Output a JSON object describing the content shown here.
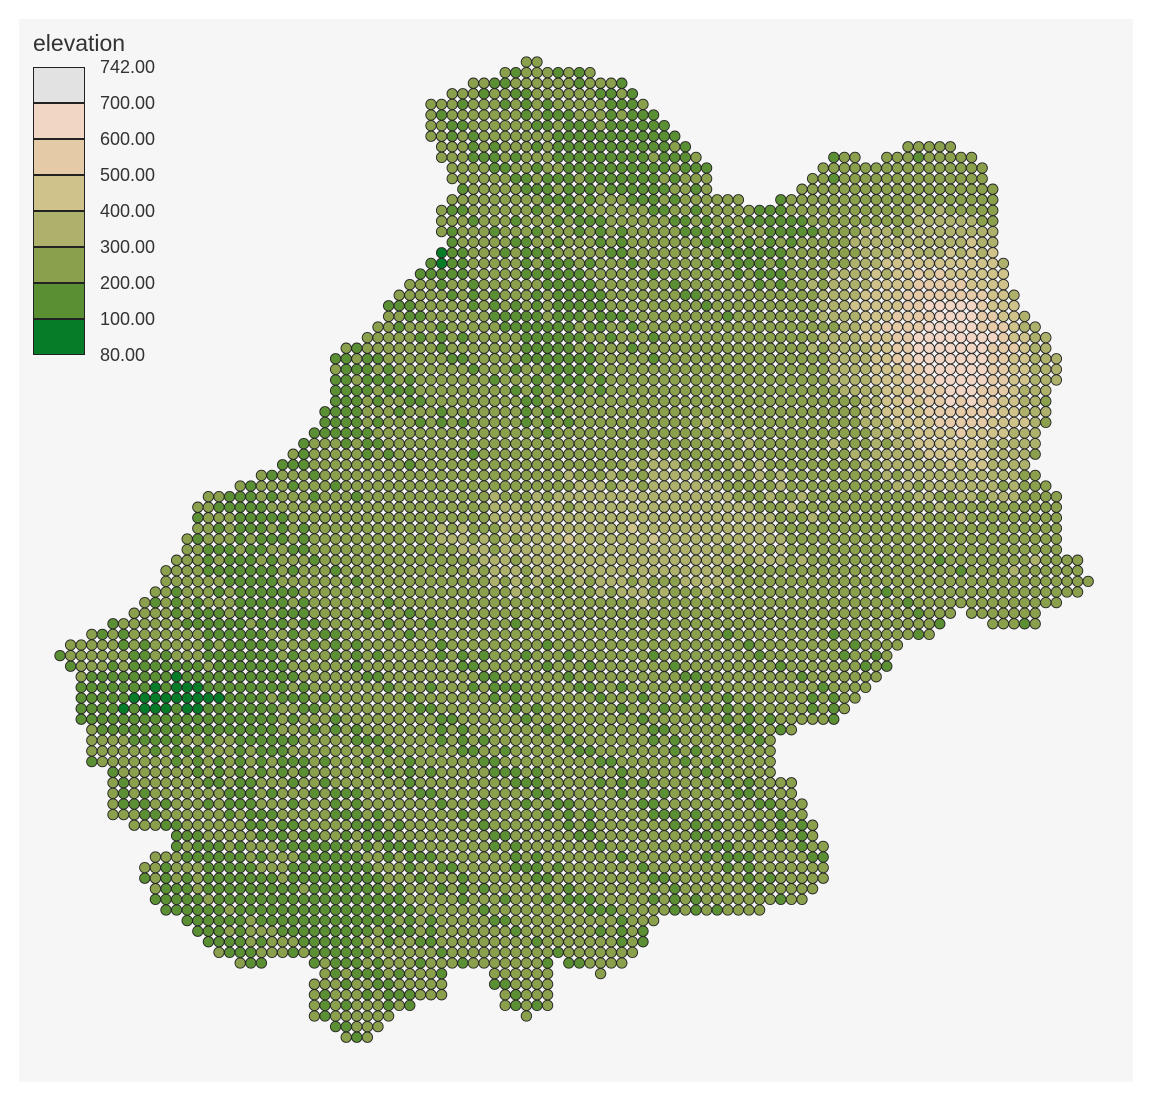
{
  "legend": {
    "title": "elevation",
    "breaks": [
      "742.00",
      "700.00",
      "600.00",
      "500.00",
      "400.00",
      "300.00",
      "200.00",
      "100.00",
      "80.00"
    ],
    "classes": [
      {
        "range": "700.00 – 742.00",
        "color": "#e2e2e2"
      },
      {
        "range": "600.00 – 700.00",
        "color": "#f1d6c6"
      },
      {
        "range": "500.00 – 600.00",
        "color": "#e5caa8"
      },
      {
        "range": "400.00 – 500.00",
        "color": "#cfc38b"
      },
      {
        "range": "300.00 – 400.00",
        "color": "#aeb16c"
      },
      {
        "range": "200.00 – 300.00",
        "color": "#8aa04c"
      },
      {
        "range": "100.00 – 200.00",
        "color": "#5b8f33"
      },
      {
        "range": "80.00 – 100.00",
        "color": "#067b28"
      }
    ]
  },
  "colors": {
    "panel_background": "#f6f6f6",
    "point_outline": "#262626"
  }
}
